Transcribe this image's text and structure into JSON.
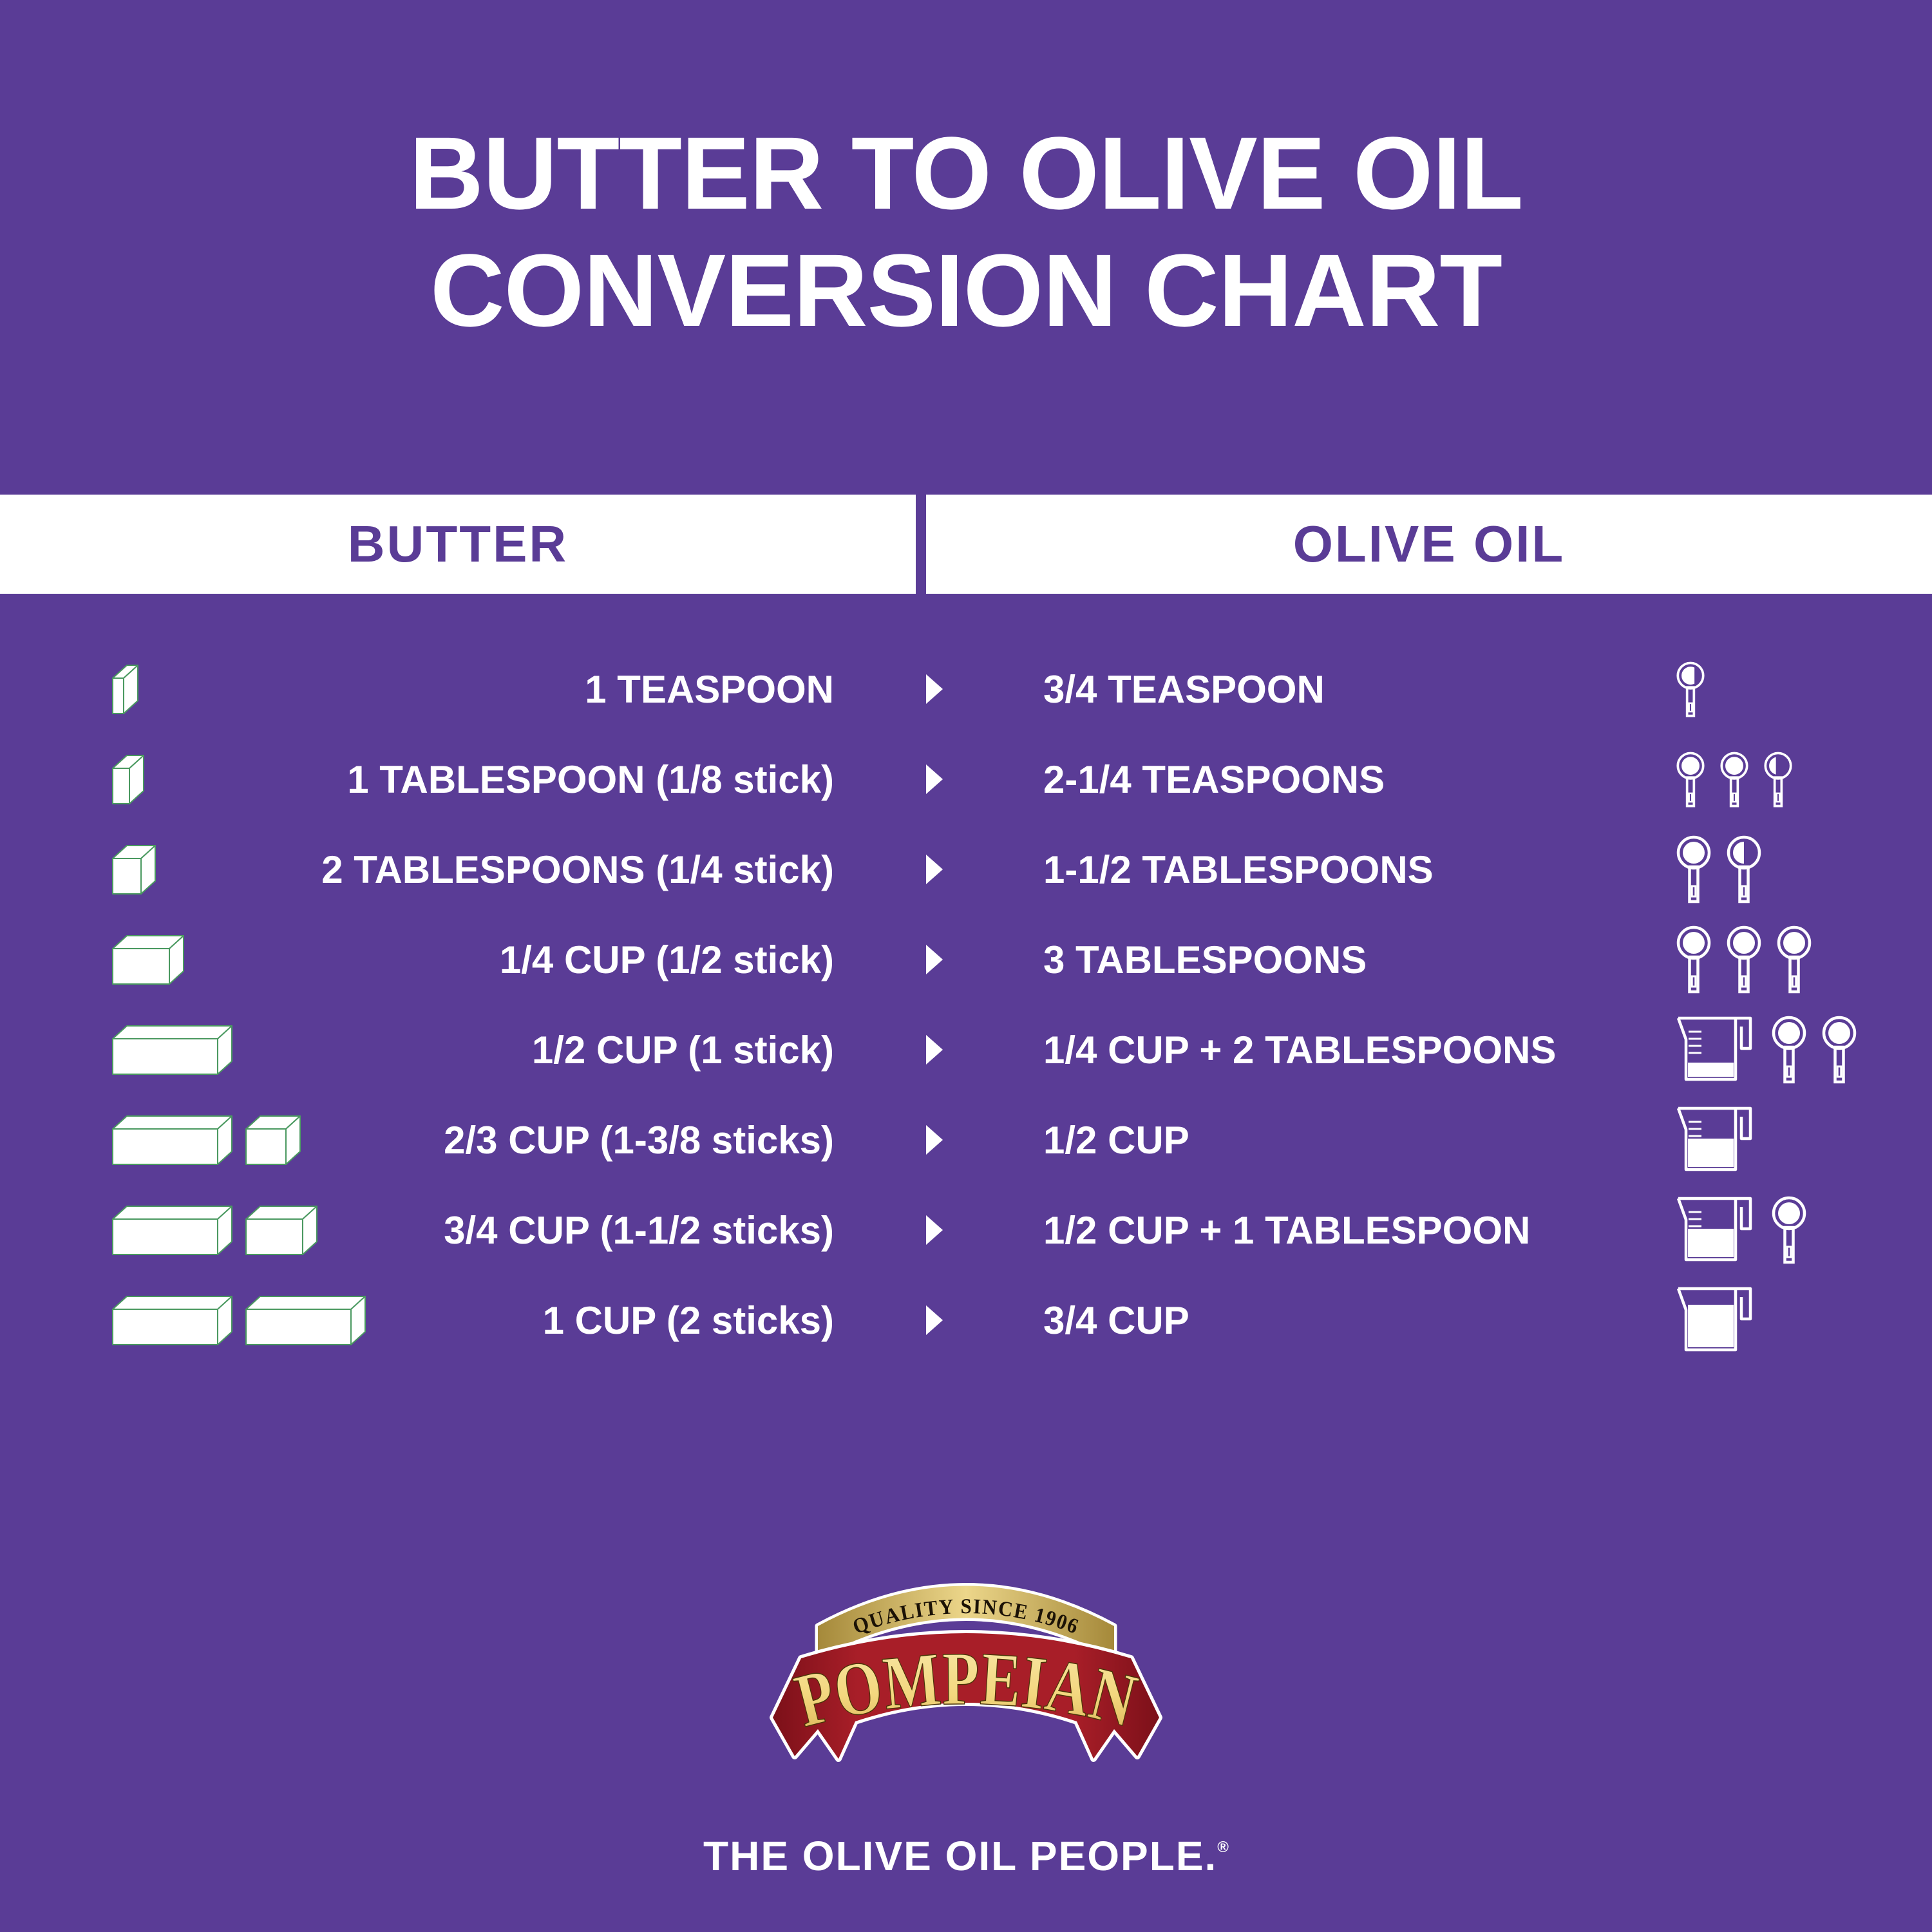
{
  "colors": {
    "background_purple": "#5a3c96",
    "text_white": "#ffffff",
    "butter_block_outline": "#4a9960",
    "logo_red_dark": "#7c1019",
    "logo_red": "#a81e28",
    "logo_gold_dark": "#a5893a",
    "logo_gold_light": "#ecd68a",
    "logo_gold_text": "#f3d77e",
    "logo_ink": "#1b1206"
  },
  "title": {
    "line1": "BUTTER TO OLIVE OIL",
    "line2": "CONVERSION CHART"
  },
  "table_header": {
    "left": "BUTTER",
    "right": "OLIVE OIL"
  },
  "rows": [
    {
      "butter": "1 TEASPOON",
      "olive": "3/4 TEASPOON",
      "butter_blocks": [
        17
      ],
      "olive_icons": [
        {
          "type": "measuring-spoon",
          "size": "teaspoon",
          "fill": "three-quarters"
        }
      ]
    },
    {
      "butter": "1 TABLESPOON (1/8 stick)",
      "olive": "2-1/4 TEASPOONS",
      "butter_blocks": [
        26
      ],
      "olive_icons": [
        {
          "type": "measuring-spoon",
          "size": "teaspoon",
          "fill": "full"
        },
        {
          "type": "measuring-spoon",
          "size": "teaspoon",
          "fill": "full"
        },
        {
          "type": "measuring-spoon",
          "size": "teaspoon",
          "fill": "quarter"
        }
      ]
    },
    {
      "butter": "2 TABLESPOONS (1/4 stick)",
      "olive": "1-1/2 TABLESPOONS",
      "butter_blocks": [
        44
      ],
      "olive_icons": [
        {
          "type": "measuring-spoon",
          "size": "tablespoon",
          "fill": "full"
        },
        {
          "type": "measuring-spoon",
          "size": "tablespoon",
          "fill": "half"
        }
      ]
    },
    {
      "butter": "1/4 CUP (1/2 stick)",
      "olive": "3 TABLESPOONS",
      "butter_blocks": [
        88
      ],
      "olive_icons": [
        {
          "type": "measuring-spoon",
          "size": "tablespoon",
          "fill": "full"
        },
        {
          "type": "measuring-spoon",
          "size": "tablespoon",
          "fill": "full"
        },
        {
          "type": "measuring-spoon",
          "size": "tablespoon",
          "fill": "full"
        }
      ]
    },
    {
      "butter": "1/2 CUP (1 stick)",
      "olive": "1/4 CUP + 2 TABLESPOONS",
      "butter_blocks": [
        163
      ],
      "olive_icons": [
        {
          "type": "measuring-cup",
          "fill": 0.25,
          "ticks": 4
        },
        {
          "type": "measuring-spoon",
          "size": "tablespoon",
          "fill": "full"
        },
        {
          "type": "measuring-spoon",
          "size": "tablespoon",
          "fill": "full"
        }
      ]
    },
    {
      "butter": "2/3 CUP (1-3/8 sticks)",
      "olive": "1/2 CUP",
      "butter_blocks": [
        163,
        62
      ],
      "olive_icons": [
        {
          "type": "measuring-cup",
          "fill": 0.5,
          "ticks": 3
        }
      ]
    },
    {
      "butter": "3/4 CUP (1-1/2 sticks)",
      "olive": "1/2 CUP + 1 TABLESPOON",
      "butter_blocks": [
        163,
        88
      ],
      "olive_icons": [
        {
          "type": "measuring-cup",
          "fill": 0.5,
          "ticks": 3
        },
        {
          "type": "measuring-spoon",
          "size": "tablespoon",
          "fill": "full"
        }
      ]
    },
    {
      "butter": "1 CUP (2 sticks)",
      "olive": "3/4 CUP",
      "butter_blocks": [
        163,
        163
      ],
      "olive_icons": [
        {
          "type": "measuring-cup",
          "fill": 0.75,
          "ticks": 0
        }
      ]
    }
  ],
  "logo": {
    "banner_text": "QUALITY SINCE 1906",
    "brand": "POMPEIAN"
  },
  "footer": {
    "tagline": "THE OLIVE OIL PEOPLE.",
    "registered": "®"
  }
}
